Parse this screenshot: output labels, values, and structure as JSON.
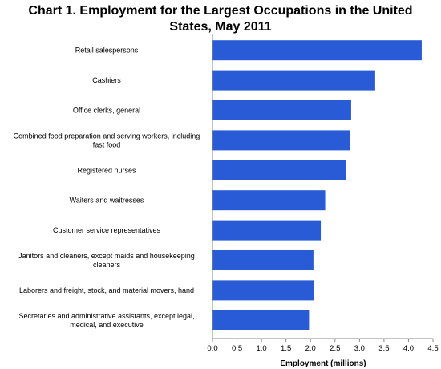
{
  "chart_data": {
    "type": "bar",
    "orientation": "horizontal",
    "title": "Chart 1. Employment for the Largest Occupations in the United States, May 2011",
    "xlabel": "Employment (millions)",
    "ylabel": "",
    "xlim": [
      0,
      4.5
    ],
    "xticks": [
      "0.0",
      "0.5",
      "1.0",
      "1.5",
      "2.0",
      "2.5",
      "3.0",
      "3.5",
      "4.0",
      "4.5"
    ],
    "grid": false,
    "legend": "none",
    "bar_color": "#2a5bd7",
    "categories": [
      "Retail salespersons",
      "Cashiers",
      "Office clerks, general",
      "Combined food preparation and serving workers, including fast food",
      "Registered nurses",
      "Waiters and waitresses",
      "Customer service representatives",
      "Janitors and cleaners, except maids and housekeeping cleaners",
      "Laborers and freight, stock, and material movers, hand",
      "Secretaries and administrative assistants, except legal, medical, and executive"
    ],
    "values": [
      4.27,
      3.32,
      2.83,
      2.8,
      2.72,
      2.3,
      2.21,
      2.06,
      2.07,
      1.97
    ]
  }
}
